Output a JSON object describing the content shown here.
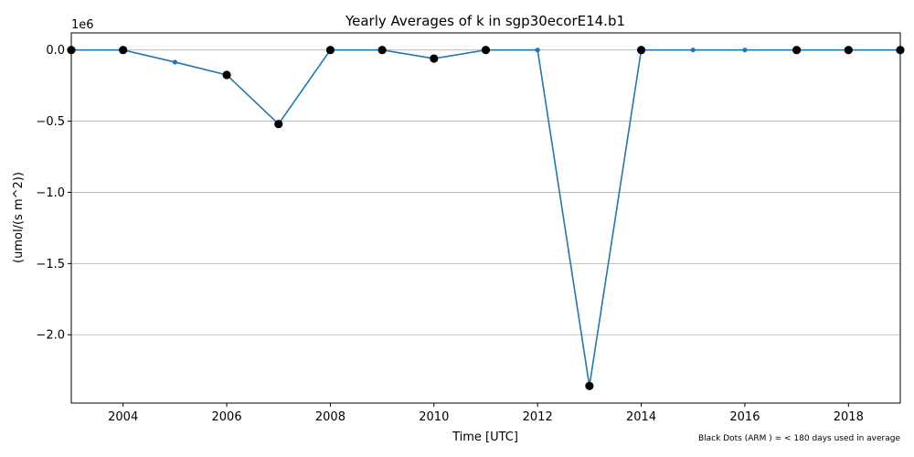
{
  "chart_data": {
    "type": "line",
    "title": "Yearly Averages of k in sgp30ecorE14.b1",
    "xlabel": "Time [UTC]",
    "ylabel": "(umol/(s m^2))",
    "y_offset_label": "1e6",
    "y_scale_factor": 1000000,
    "xlim": [
      2003,
      2019
    ],
    "ylim": [
      -2.48,
      0.12
    ],
    "x_ticks": [
      2004,
      2006,
      2008,
      2010,
      2012,
      2014,
      2016,
      2018
    ],
    "y_ticks": [
      0.0,
      -0.5,
      -1.0,
      -1.5,
      -2.0
    ],
    "y_tick_labels": [
      "0.0",
      "−0.5",
      "−1.0",
      "−1.5",
      "−2.0"
    ],
    "grid": "horizontal",
    "line_color": "#1f77b4",
    "marker_color_sparse": "#000000",
    "note": "Black Dots (ARM ) = < 180 days used in average",
    "series": [
      {
        "x": [
          2003,
          2004,
          2005,
          2006,
          2007,
          2008,
          2009,
          2010,
          2011,
          2012,
          2013,
          2014,
          2015,
          2016,
          2017,
          2018,
          2019
        ],
        "values": [
          0.0,
          0.0,
          -0.085,
          -0.175,
          -0.52,
          0.0,
          0.0,
          -0.06,
          0.0,
          0.0,
          -2.36,
          0.0,
          0.0,
          0.0,
          0.0,
          0.0,
          0.0
        ],
        "sparse": [
          true,
          true,
          false,
          true,
          true,
          true,
          true,
          true,
          true,
          false,
          true,
          true,
          false,
          false,
          true,
          true,
          true
        ]
      }
    ]
  }
}
